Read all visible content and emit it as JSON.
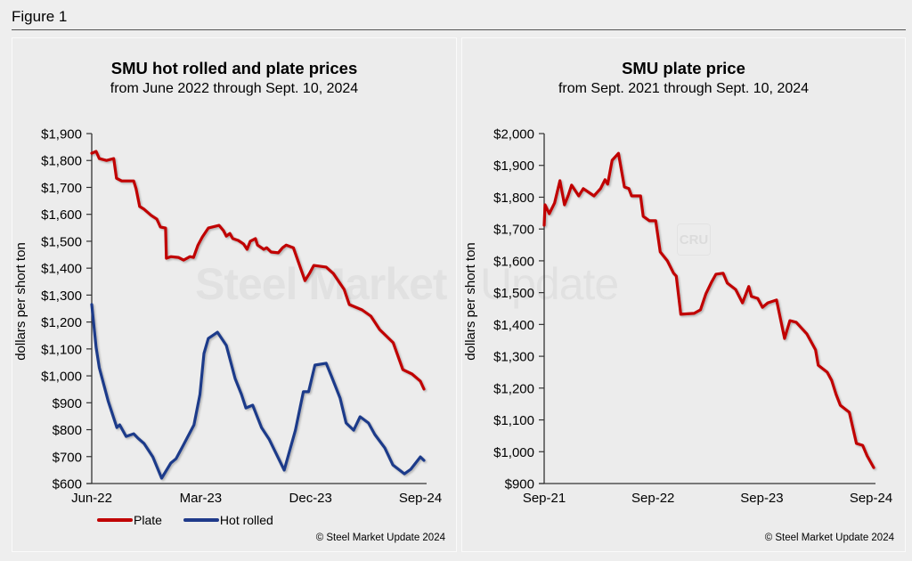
{
  "figure": {
    "title": "Figure 1"
  },
  "colors": {
    "plate": "#c00000",
    "hot_rolled": "#1f3a8a",
    "axis": "#333333"
  },
  "watermark": {
    "text_bold": "Steel Market",
    "text_light": "Update",
    "badge": "CRU"
  },
  "chart_data": [
    {
      "type": "line",
      "title": "SMU hot rolled and plate prices",
      "subtitle": "from June 2022 through Sept. 10, 2024",
      "xlabel": "",
      "ylabel": "dollars per short ton",
      "xlim": [
        "2022-06-01",
        "2024-09-10"
      ],
      "ylim": [
        600,
        1900
      ],
      "yticks": [
        600,
        700,
        800,
        900,
        1000,
        1100,
        1200,
        1300,
        1400,
        1500,
        1600,
        1700,
        1800,
        1900
      ],
      "ytick_labels": [
        "$600",
        "$700",
        "$800",
        "$900",
        "$1,000",
        "$1,100",
        "$1,200",
        "$1,300",
        "$1,400",
        "$1,500",
        "$1,600",
        "$1,700",
        "$1,800",
        "$1,900"
      ],
      "xticks": [
        "2022-06-01",
        "2023-03-01",
        "2023-12-01",
        "2024-09-01"
      ],
      "xtick_labels": [
        "Jun-22",
        "Mar-23",
        "Dec-23",
        "Sep-24"
      ],
      "grid": false,
      "legend": {
        "position": "bottom",
        "entries": [
          "Plate",
          "Hot rolled"
        ]
      },
      "credit": "© Steel Market Update 2024",
      "series": [
        {
          "name": "Plate",
          "color": "#c00000",
          "points": [
            [
              "2022-06-01",
              1827
            ],
            [
              "2022-06-12",
              1834
            ],
            [
              "2022-06-20",
              1807
            ],
            [
              "2022-07-08",
              1800
            ],
            [
              "2022-07-26",
              1807
            ],
            [
              "2022-08-02",
              1734
            ],
            [
              "2022-08-15",
              1724
            ],
            [
              "2022-09-14",
              1724
            ],
            [
              "2022-09-20",
              1695
            ],
            [
              "2022-09-29",
              1629
            ],
            [
              "2022-10-10",
              1619
            ],
            [
              "2022-10-28",
              1596
            ],
            [
              "2022-11-11",
              1582
            ],
            [
              "2022-11-20",
              1553
            ],
            [
              "2022-12-03",
              1549
            ],
            [
              "2022-12-05",
              1437
            ],
            [
              "2022-12-16",
              1443
            ],
            [
              "2023-01-04",
              1440
            ],
            [
              "2023-01-17",
              1430
            ],
            [
              "2023-02-02",
              1443
            ],
            [
              "2023-02-11",
              1440
            ],
            [
              "2023-02-22",
              1486
            ],
            [
              "2023-03-05",
              1516
            ],
            [
              "2023-03-20",
              1549
            ],
            [
              "2023-04-16",
              1559
            ],
            [
              "2023-04-27",
              1539
            ],
            [
              "2023-05-04",
              1519
            ],
            [
              "2023-05-13",
              1529
            ],
            [
              "2023-05-20",
              1510
            ],
            [
              "2023-06-03",
              1503
            ],
            [
              "2023-06-16",
              1490
            ],
            [
              "2023-06-25",
              1470
            ],
            [
              "2023-07-03",
              1500
            ],
            [
              "2023-07-16",
              1510
            ],
            [
              "2023-07-21",
              1486
            ],
            [
              "2023-08-06",
              1470
            ],
            [
              "2023-08-13",
              1476
            ],
            [
              "2023-08-24",
              1460
            ],
            [
              "2023-09-11",
              1457
            ],
            [
              "2023-09-22",
              1476
            ],
            [
              "2023-10-01",
              1486
            ],
            [
              "2023-10-19",
              1476
            ],
            [
              "2023-11-17",
              1354
            ],
            [
              "2023-11-28",
              1380
            ],
            [
              "2023-12-09",
              1410
            ],
            [
              "2024-01-09",
              1404
            ],
            [
              "2024-01-27",
              1380
            ],
            [
              "2024-02-23",
              1321
            ],
            [
              "2024-03-07",
              1265
            ],
            [
              "2024-04-08",
              1245
            ],
            [
              "2024-04-30",
              1222
            ],
            [
              "2024-05-22",
              1172
            ],
            [
              "2024-06-25",
              1123
            ],
            [
              "2024-07-19",
              1023
            ],
            [
              "2024-08-11",
              1007
            ],
            [
              "2024-09-01",
              980
            ],
            [
              "2024-09-10",
              951
            ]
          ]
        },
        {
          "name": "Hot rolled",
          "color": "#1f3a8a",
          "points": [
            [
              "2022-06-01",
              1265
            ],
            [
              "2022-06-12",
              1106
            ],
            [
              "2022-06-20",
              1030
            ],
            [
              "2022-07-12",
              907
            ],
            [
              "2022-08-03",
              808
            ],
            [
              "2022-08-10",
              818
            ],
            [
              "2022-08-26",
              775
            ],
            [
              "2022-09-14",
              785
            ],
            [
              "2022-09-25",
              768
            ],
            [
              "2022-10-10",
              749
            ],
            [
              "2022-11-01",
              699
            ],
            [
              "2022-11-23",
              620
            ],
            [
              "2022-12-16",
              676
            ],
            [
              "2022-12-29",
              692
            ],
            [
              "2023-01-14",
              736
            ],
            [
              "2023-02-12",
              818
            ],
            [
              "2023-02-27",
              931
            ],
            [
              "2023-03-09",
              1083
            ],
            [
              "2023-03-20",
              1139
            ],
            [
              "2023-04-12",
              1162
            ],
            [
              "2023-05-04",
              1113
            ],
            [
              "2023-05-26",
              990
            ],
            [
              "2023-06-11",
              931
            ],
            [
              "2023-06-22",
              881
            ],
            [
              "2023-07-09",
              891
            ],
            [
              "2023-07-31",
              808
            ],
            [
              "2023-08-19",
              765
            ],
            [
              "2023-09-26",
              650
            ],
            [
              "2023-10-24",
              798
            ],
            [
              "2023-11-13",
              941
            ],
            [
              "2023-11-26",
              941
            ],
            [
              "2023-12-12",
              1040
            ],
            [
              "2024-01-09",
              1047
            ],
            [
              "2024-01-22",
              1000
            ],
            [
              "2024-02-13",
              917
            ],
            [
              "2024-02-28",
              825
            ],
            [
              "2024-03-18",
              798
            ],
            [
              "2024-04-03",
              848
            ],
            [
              "2024-04-24",
              825
            ],
            [
              "2024-05-10",
              782
            ],
            [
              "2024-06-04",
              732
            ],
            [
              "2024-06-24",
              669
            ],
            [
              "2024-07-23",
              636
            ],
            [
              "2024-08-08",
              653
            ],
            [
              "2024-09-01",
              699
            ],
            [
              "2024-09-10",
              686
            ]
          ]
        }
      ]
    },
    {
      "type": "line",
      "title": "SMU plate price",
      "subtitle": "from Sept. 2021 through Sept. 10, 2024",
      "xlabel": "",
      "ylabel": "dollars per short ton",
      "xlim": [
        "2021-09-01",
        "2024-09-10"
      ],
      "ylim": [
        900,
        2000
      ],
      "yticks": [
        900,
        1000,
        1100,
        1200,
        1300,
        1400,
        1500,
        1600,
        1700,
        1800,
        1900,
        2000
      ],
      "ytick_labels": [
        "$900",
        "$1,000",
        "$1,100",
        "$1,200",
        "$1,300",
        "$1,400",
        "$1,500",
        "$1,600",
        "$1,700",
        "$1,800",
        "$1,900",
        "$2,000"
      ],
      "xticks": [
        "2021-09-01",
        "2022-09-01",
        "2023-09-01",
        "2024-09-01"
      ],
      "xtick_labels": [
        "Sep-21",
        "Sep-22",
        "Sep-23",
        "Sep-24"
      ],
      "grid": false,
      "legend": null,
      "credit": "© Steel Market Update 2024",
      "series": [
        {
          "name": "Plate",
          "color": "#c00000",
          "points": [
            [
              "2021-09-01",
              1712
            ],
            [
              "2021-09-04",
              1776
            ],
            [
              "2021-09-18",
              1748
            ],
            [
              "2021-10-06",
              1782
            ],
            [
              "2021-10-24",
              1852
            ],
            [
              "2021-11-08",
              1776
            ],
            [
              "2021-11-20",
              1804
            ],
            [
              "2021-12-02",
              1838
            ],
            [
              "2021-12-26",
              1804
            ],
            [
              "2022-01-10",
              1827
            ],
            [
              "2022-02-15",
              1804
            ],
            [
              "2022-03-09",
              1827
            ],
            [
              "2022-03-24",
              1855
            ],
            [
              "2022-04-02",
              1841
            ],
            [
              "2022-04-17",
              1916
            ],
            [
              "2022-05-08",
              1938
            ],
            [
              "2022-05-28",
              1832
            ],
            [
              "2022-06-12",
              1827
            ],
            [
              "2022-06-21",
              1804
            ],
            [
              "2022-07-21",
              1804
            ],
            [
              "2022-07-30",
              1740
            ],
            [
              "2022-08-20",
              1726
            ],
            [
              "2022-09-10",
              1726
            ],
            [
              "2022-09-25",
              1628
            ],
            [
              "2022-10-19",
              1600
            ],
            [
              "2022-11-09",
              1561
            ],
            [
              "2022-11-18",
              1552
            ],
            [
              "2022-12-03",
              1432
            ],
            [
              "2023-01-17",
              1435
            ],
            [
              "2023-02-07",
              1446
            ],
            [
              "2023-02-25",
              1496
            ],
            [
              "2023-03-16",
              1533
            ],
            [
              "2023-03-31",
              1558
            ],
            [
              "2023-04-24",
              1561
            ],
            [
              "2023-05-08",
              1530
            ],
            [
              "2023-06-05",
              1510
            ],
            [
              "2023-06-28",
              1468
            ],
            [
              "2023-07-19",
              1519
            ],
            [
              "2023-07-28",
              1488
            ],
            [
              "2023-08-18",
              1482
            ],
            [
              "2023-09-03",
              1454
            ],
            [
              "2023-09-21",
              1468
            ],
            [
              "2023-10-20",
              1477
            ],
            [
              "2023-11-16",
              1356
            ],
            [
              "2023-12-04",
              1412
            ],
            [
              "2023-12-25",
              1407
            ],
            [
              "2024-01-30",
              1370
            ],
            [
              "2024-02-28",
              1320
            ],
            [
              "2024-03-08",
              1272
            ],
            [
              "2024-04-07",
              1250
            ],
            [
              "2024-04-22",
              1224
            ],
            [
              "2024-05-07",
              1180
            ],
            [
              "2024-05-21",
              1146
            ],
            [
              "2024-06-20",
              1124
            ],
            [
              "2024-07-14",
              1026
            ],
            [
              "2024-08-04",
              1020
            ],
            [
              "2024-08-19",
              987
            ],
            [
              "2024-09-10",
              950
            ]
          ]
        }
      ]
    }
  ]
}
